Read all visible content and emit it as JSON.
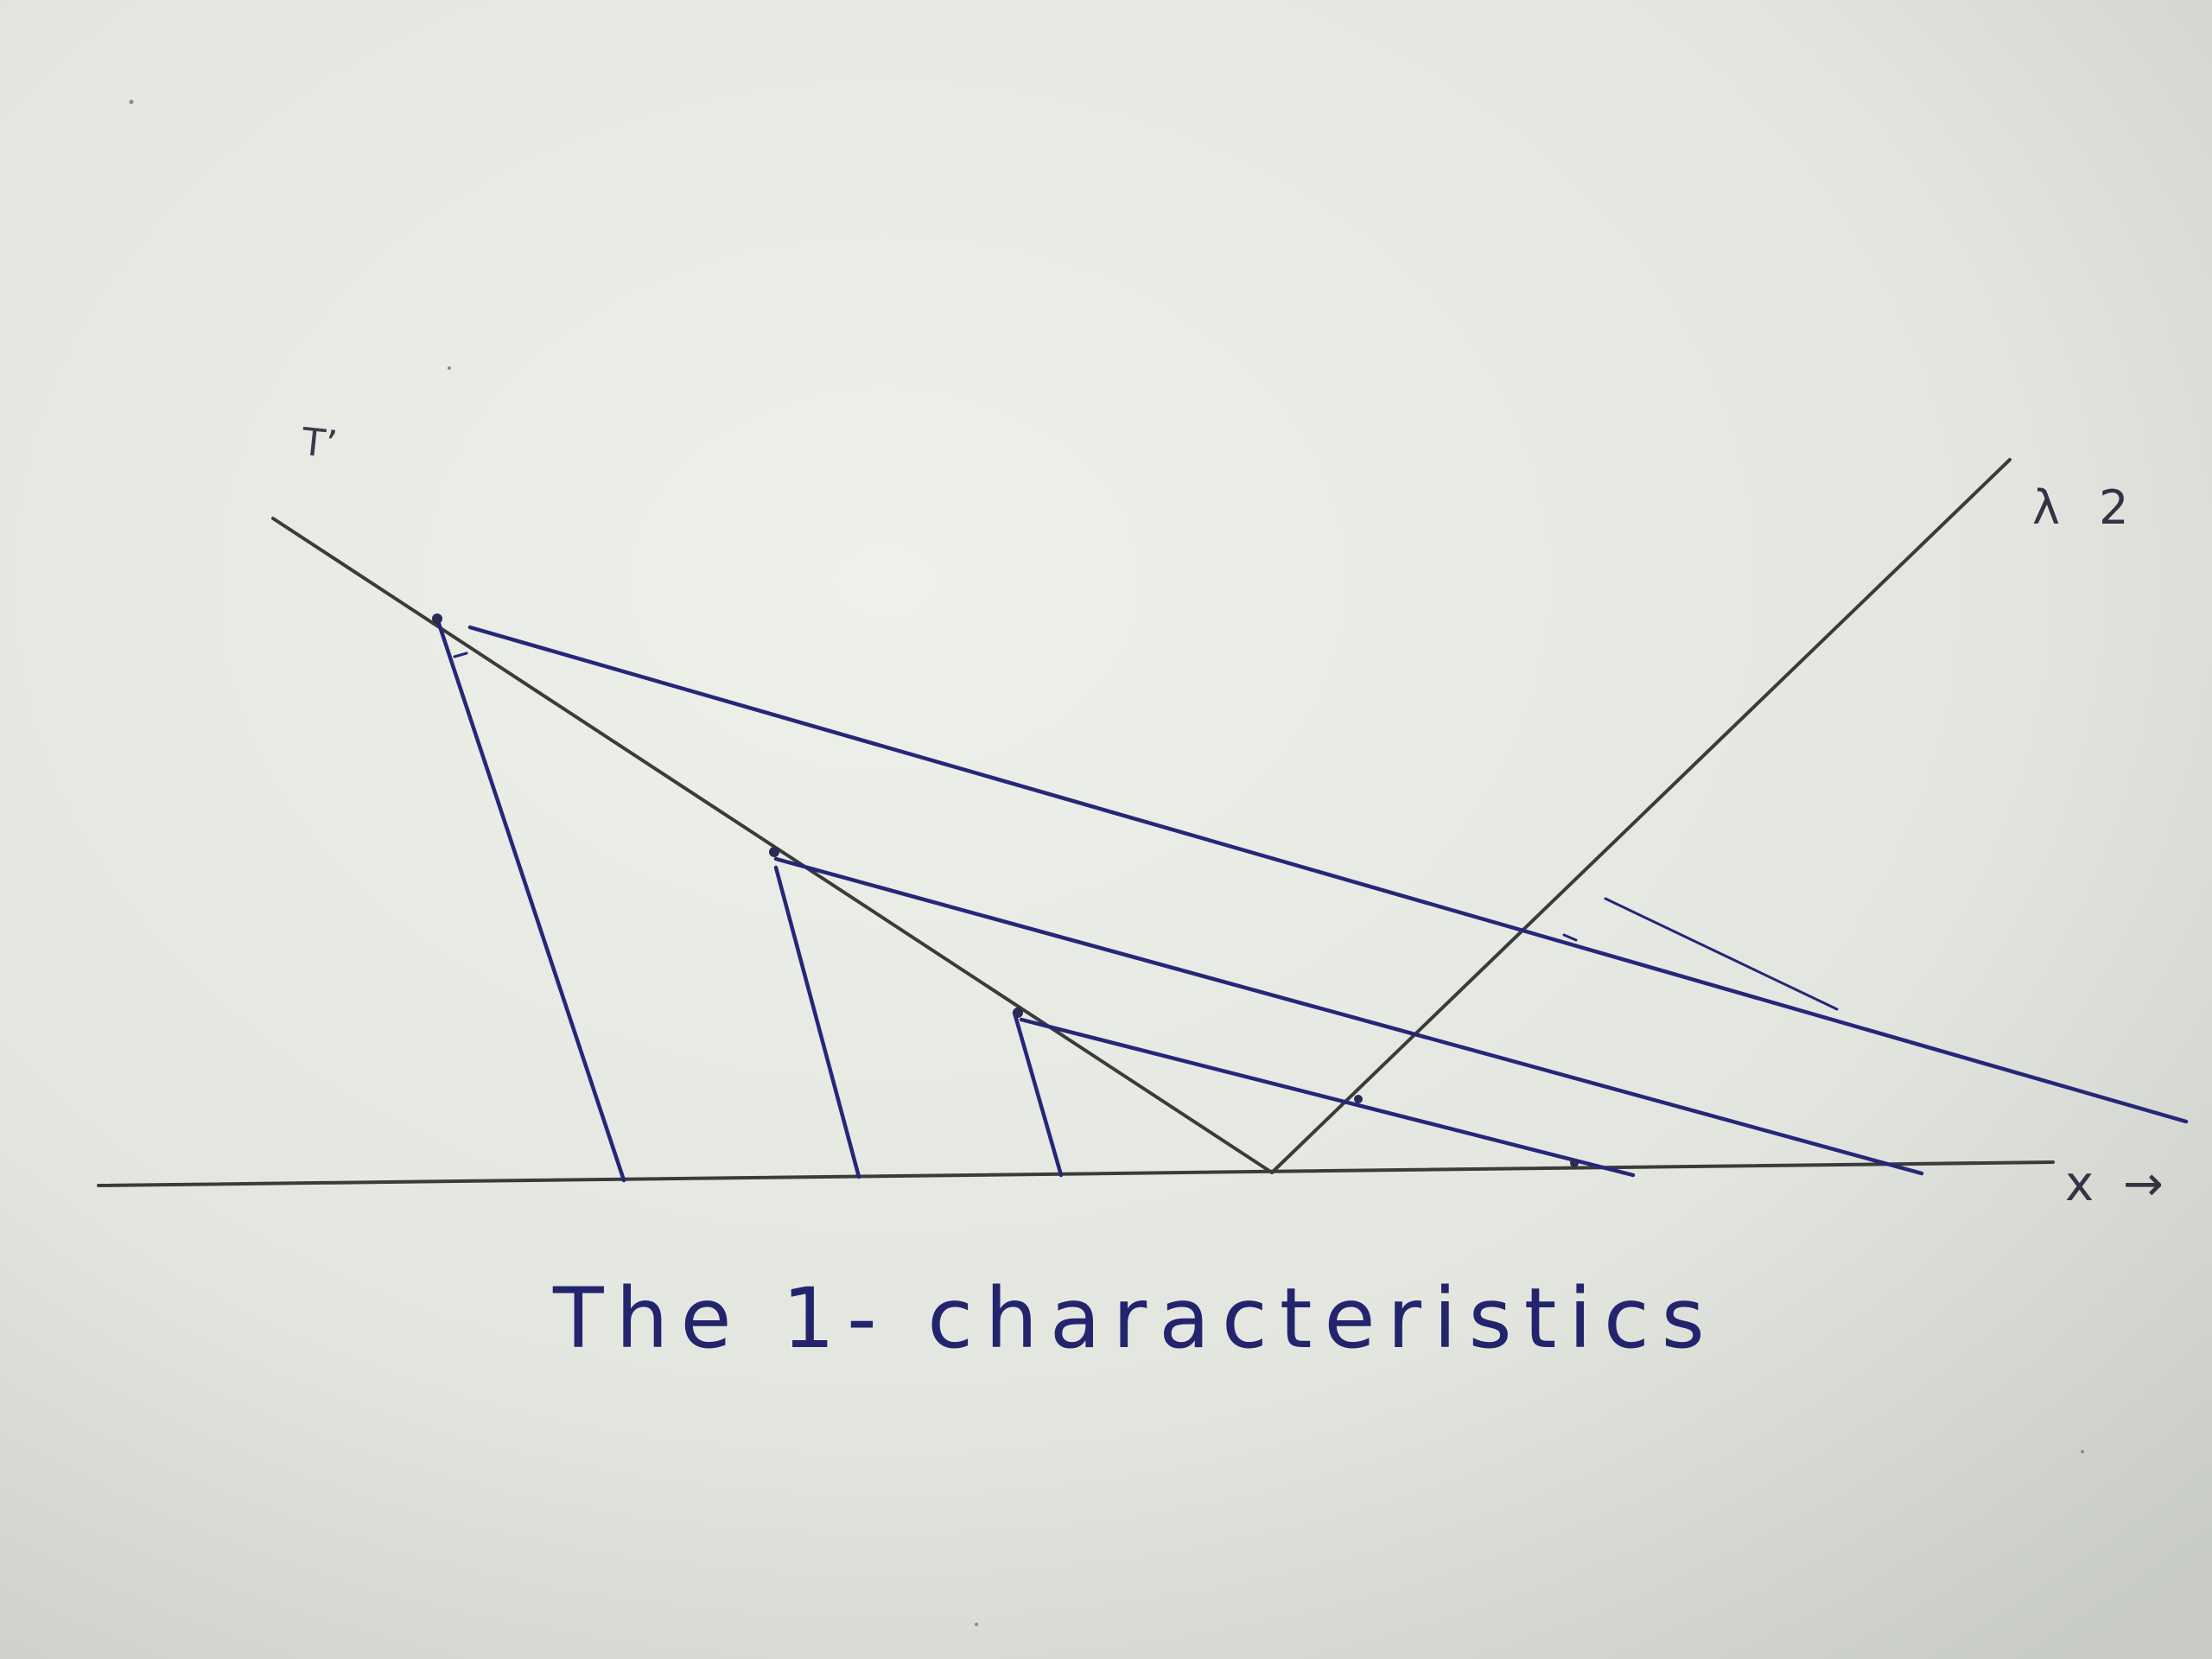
{
  "labels": {
    "t1": "T’",
    "lambda2": "λ 2",
    "x_axis": "x →"
  },
  "caption": "The  1- characteristics",
  "colors": {
    "paper_light": "#eef0ea",
    "paper_dark": "#c9cdc6",
    "pencil": "#3b3b3b",
    "ink": "#26267a"
  }
}
